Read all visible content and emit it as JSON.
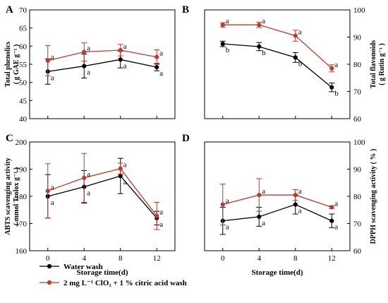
{
  "chart_data": [
    {
      "panel": "A",
      "type": "line",
      "ylabel_lines": [
        "Total phenolics",
        "( g GAE g⁻¹ )"
      ],
      "yaxis_side": "left",
      "ylim": [
        40,
        70
      ],
      "yticks": [
        40,
        45,
        50,
        55,
        60,
        65,
        70
      ],
      "x": [
        0,
        4,
        8,
        12
      ],
      "xlim": [
        -2,
        14
      ],
      "xticks": [],
      "series": [
        {
          "name": "Water wash",
          "color": "#000000",
          "values": [
            53.0,
            54.5,
            56.3,
            54.2
          ],
          "errors": [
            3.5,
            3.3,
            2.3,
            1.0
          ],
          "labels": [
            "a",
            "a",
            "a",
            "a"
          ]
        },
        {
          "name": "2 mg L⁻¹ ClO₂ + 1 % citric acid wash",
          "color": "#c0392b",
          "values": [
            56.0,
            58.4,
            58.9,
            57.0
          ],
          "errors": [
            4.2,
            2.5,
            1.6,
            2.0
          ],
          "labels": [
            "a",
            "a",
            "a",
            "a"
          ]
        }
      ]
    },
    {
      "panel": "B",
      "type": "line",
      "ylabel_lines": [
        "Total flavonoids",
        "( g Rutin g⁻¹ )"
      ],
      "yaxis_side": "right",
      "ylim": [
        60,
        100
      ],
      "yticks": [
        60,
        70,
        80,
        90,
        100
      ],
      "x": [
        0,
        4,
        8,
        12
      ],
      "xlim": [
        -2,
        14
      ],
      "xticks": [],
      "series": [
        {
          "name": "Water wash",
          "color": "#000000",
          "values": [
            87.5,
            86.5,
            82.5,
            71.5
          ],
          "errors": [
            1.0,
            1.5,
            1.8,
            1.6
          ],
          "labels": [
            "b",
            "b",
            "b",
            "b"
          ]
        },
        {
          "name": "2 mg L⁻¹ ClO₂ + 1 % citric acid wash",
          "color": "#c0392b",
          "values": [
            94.5,
            94.5,
            90.5,
            78.5
          ],
          "errors": [
            0.8,
            1.0,
            2.0,
            1.3
          ],
          "labels": [
            "a",
            "a",
            "a",
            "a"
          ]
        }
      ]
    },
    {
      "panel": "C",
      "type": "line",
      "ylabel_lines": [
        "ABTS scavenging activity",
        "( mmol Trolox g⁻¹ )"
      ],
      "yaxis_side": "left",
      "ylim": [
        160,
        200
      ],
      "yticks": [
        160,
        170,
        180,
        190,
        200
      ],
      "x": [
        0,
        4,
        8,
        12
      ],
      "xlim": [
        -2,
        14
      ],
      "xticks": [
        "0",
        "4",
        "8",
        "12"
      ],
      "xlabel": "Storage time(d)",
      "series": [
        {
          "name": "Water wash",
          "color": "#000000",
          "values": [
            180.0,
            183.5,
            187.5,
            172.0
          ],
          "errors": [
            8.0,
            6.0,
            6.5,
            2.5
          ],
          "labels": [
            "a",
            "a",
            "a",
            "a"
          ]
        },
        {
          "name": "2 mg L⁻¹ ClO₂ + 1 % citric acid wash",
          "color": "#c0392b",
          "values": [
            182.0,
            186.8,
            190.2,
            172.8
          ],
          "errors": [
            10.0,
            9.0,
            2.0,
            5.0
          ],
          "labels": [
            "a",
            "a",
            "a",
            "a"
          ]
        }
      ]
    },
    {
      "panel": "D",
      "type": "line",
      "ylabel_lines": [
        "DPPH scavenging activity ( % )"
      ],
      "yaxis_side": "right",
      "ylim": [
        60,
        100
      ],
      "yticks": [
        60,
        70,
        80,
        90,
        100
      ],
      "x": [
        0,
        4,
        8,
        12
      ],
      "xlim": [
        -2,
        14
      ],
      "xticks": [
        "0",
        "4",
        "8",
        "12"
      ],
      "xlabel": "Storage time(d)",
      "series": [
        {
          "name": "Water wash",
          "color": "#000000",
          "values": [
            71.0,
            72.5,
            77.0,
            71.0
          ],
          "errors": [
            5.0,
            3.5,
            3.5,
            2.5
          ],
          "labels": [
            "a",
            "a",
            "a",
            "a"
          ]
        },
        {
          "name": "2 mg L⁻¹ ClO₂ + 1 % citric acid wash",
          "color": "#c0392b",
          "values": [
            77.0,
            80.5,
            80.5,
            76.0
          ],
          "errors": [
            7.5,
            6.0,
            2.0,
            0.5
          ],
          "labels": [
            "a",
            "a",
            "a",
            "a"
          ]
        }
      ]
    }
  ],
  "legend": {
    "placement": "bottom-left",
    "items": [
      {
        "label": "Water wash",
        "color": "#000000"
      },
      {
        "label": "2 mg L⁻¹ ClO₂ + 1 % citric acid wash",
        "color": "#c0392b"
      }
    ]
  }
}
